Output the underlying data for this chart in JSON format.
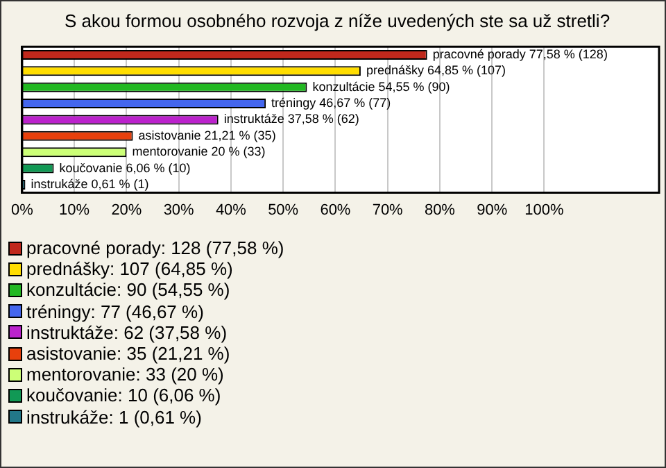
{
  "chart_data": {
    "type": "bar",
    "orientation": "horizontal",
    "title": "S akou formou osobného rozvoja z níže uvedených ste sa už stretli?",
    "categories": [
      null,
      null,
      null,
      null,
      null,
      null,
      null,
      null,
      null
    ],
    "values": [
      77.58,
      64.85,
      54.55,
      46.67,
      37.58,
      21.21,
      20,
      6.06,
      0.61
    ],
    "colors": [
      "#c0281c",
      "#ffdd00",
      "#22b822",
      "#4466ee",
      "#bb22cc",
      "#e8400c",
      "#ccff77",
      "#119955",
      "#227788"
    ],
    "value_labels": [
      "pracovné porady 77,58 % (128)",
      "prednášky 64,85 % (107)",
      "konzultácie 54,55 % (90)",
      "tréningy 46,67 % (77)",
      "instruktáže 37,58 % (62)",
      "asistovanie 21,21 % (35)",
      "mentorovanie 20 % (33)",
      "koučovanie 6,06 % (10)",
      "instrukáže 0,61 % (1)"
    ],
    "xlim": [
      0,
      122
    ],
    "xticks": [
      {
        "value": 0,
        "label": "0%"
      },
      {
        "value": 10,
        "label": "10%"
      },
      {
        "value": 20,
        "label": "20%"
      },
      {
        "value": 30,
        "label": "30%"
      },
      {
        "value": 40,
        "label": "40%"
      },
      {
        "value": 50,
        "label": "50%"
      },
      {
        "value": 60,
        "label": "60%"
      },
      {
        "value": 70,
        "label": "70%"
      },
      {
        "value": 80,
        "label": "80%"
      },
      {
        "value": 90,
        "label": "90%"
      },
      {
        "value": 100,
        "label": "100%"
      }
    ],
    "grid": "x",
    "tick_labels": "x",
    "annotations": [
      "pracovné porady: 128 (77,58 %)",
      "prednášky: 107 (64,85 %)",
      "konzultácie: 90 (54,55 %)",
      "tréningy: 77 (46,67 %)",
      "instruktáže: 62 (37,58 %)",
      "asistovanie: 35 (21,21 %)",
      "mentorovanie: 33 (20 %)",
      "koučovanie: 10 (6,06 %)",
      "instrukáže: 1 (0,61 %)"
    ]
  }
}
